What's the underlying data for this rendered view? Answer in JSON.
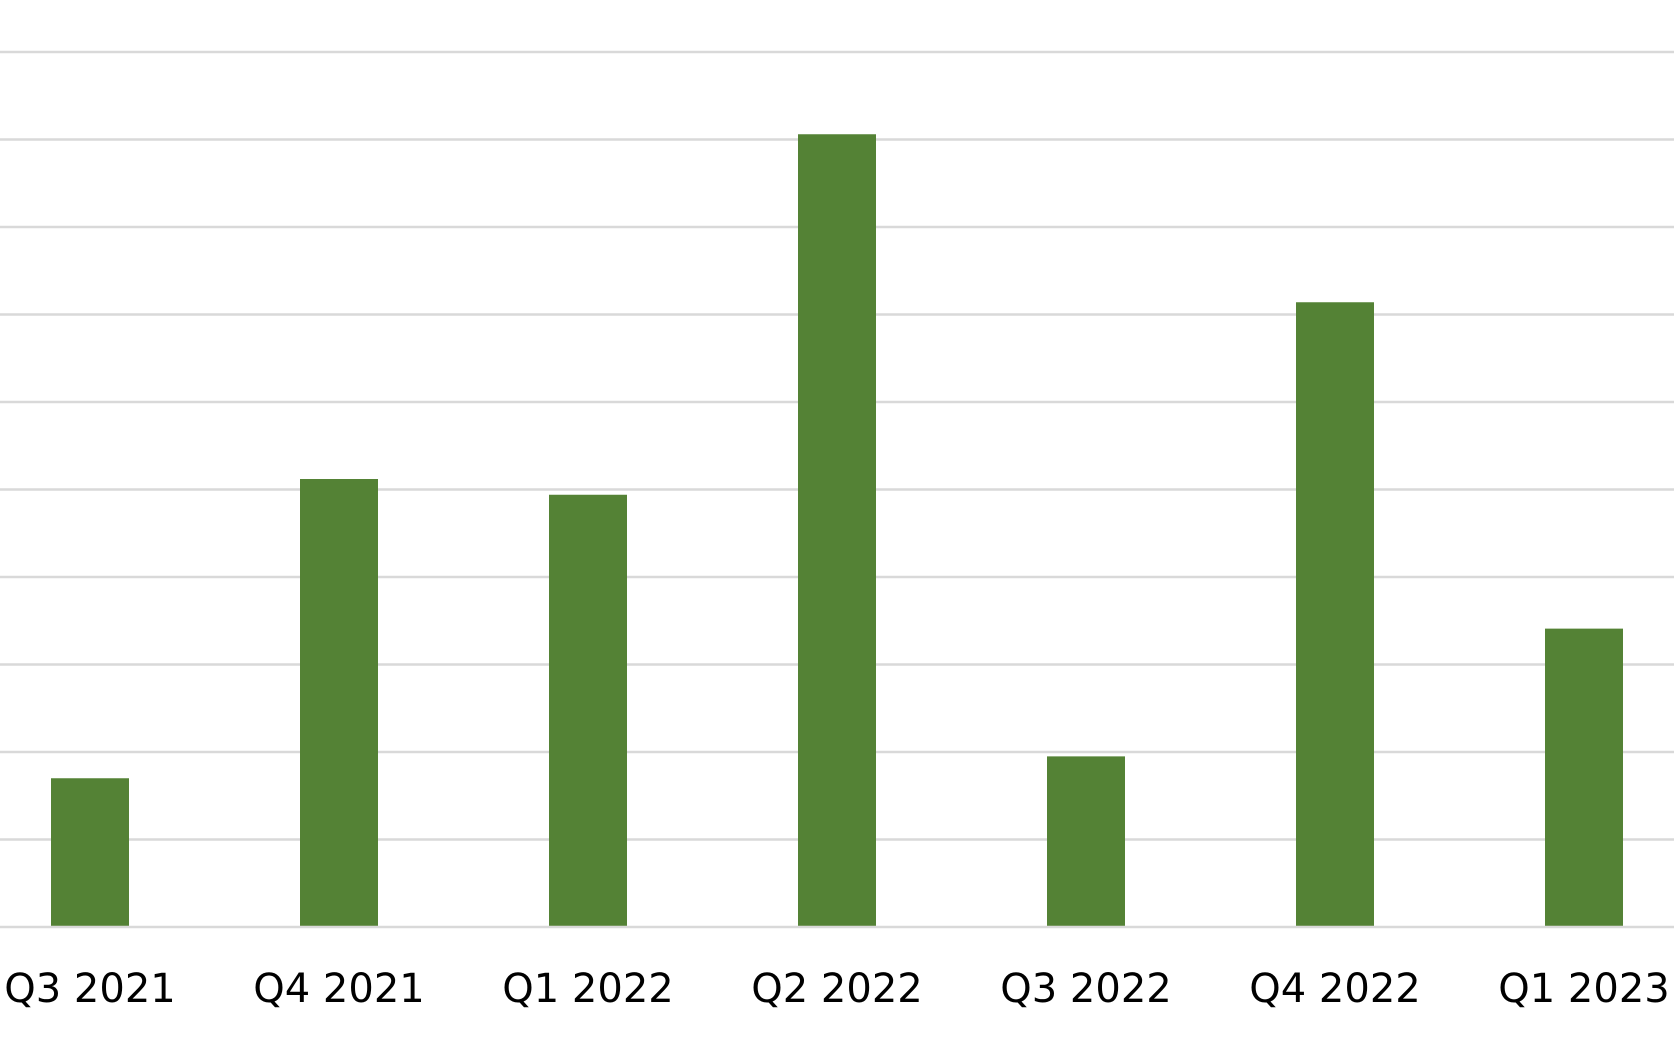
{
  "chart_data": {
    "type": "bar",
    "categories": [
      "Q3 2021",
      "Q4 2021",
      "Q1 2022",
      "Q2 2022",
      "Q3 2022",
      "Q4 2022",
      "Q1 2023"
    ],
    "values": [
      1.7,
      5.12,
      4.94,
      9.06,
      1.95,
      7.14,
      3.41
    ],
    "ylim": [
      0,
      10
    ],
    "grid": true,
    "bar_color": "#548235",
    "grid_color": "#d9d9d9",
    "title": "",
    "xlabel": "",
    "ylabel": ""
  }
}
